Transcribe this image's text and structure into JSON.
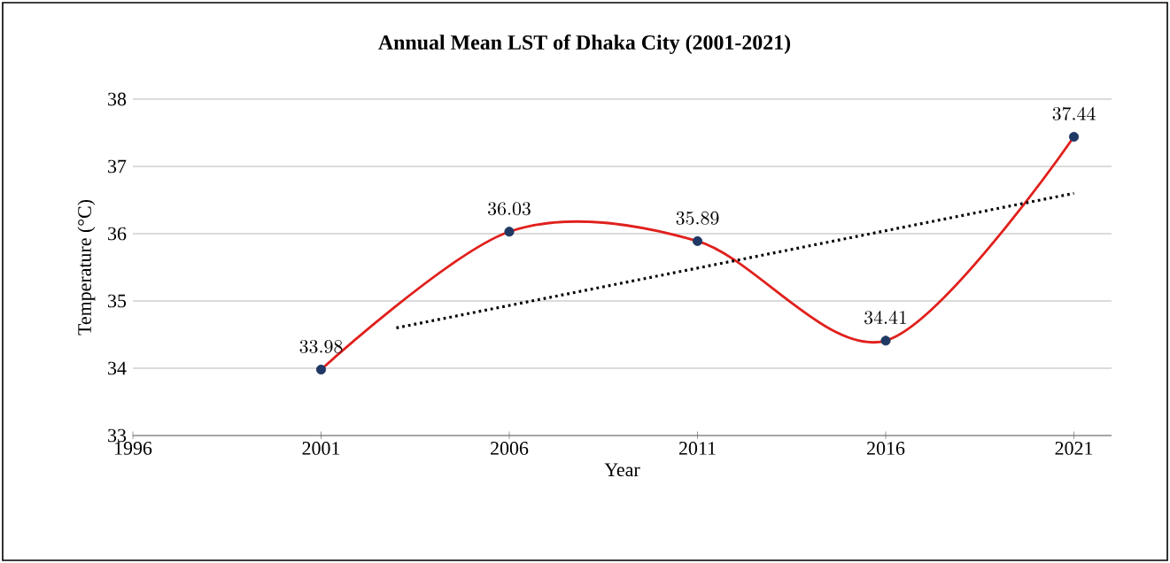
{
  "chart_data": {
    "type": "line",
    "title": "Annual Mean LST of Dhaka City (2001-2021)",
    "xlabel": "Year",
    "ylabel": "Temperature (°C)",
    "x": [
      2001,
      2006,
      2011,
      2016,
      2021
    ],
    "series": [
      {
        "color": "#e0201c",
        "values": [
          33.98,
          36.03,
          35.89,
          34.41,
          37.44
        ],
        "marker": "none",
        "line_style": "solid"
      },
      {
        "type": "line",
        "color": "#000000",
        "x": [
          2003,
          2021
        ],
        "values": [
          34.6,
          36.6
        ],
        "marker": "none",
        "line_style": "dotted"
      },
      {
        "type": "scatter",
        "color": "#1f3864",
        "values": [
          33.98,
          36.03,
          35.89,
          34.41,
          37.44
        ],
        "marker": "circle",
        "data_labels": true
      }
    ],
    "xlim": [
      1996,
      2022
    ],
    "xticks": [
      1996,
      2001,
      2006,
      2011,
      2016,
      2021
    ],
    "ylim": [
      33,
      38
    ],
    "yticks": [
      33,
      34,
      35,
      36,
      37,
      38
    ],
    "grid": "y"
  }
}
